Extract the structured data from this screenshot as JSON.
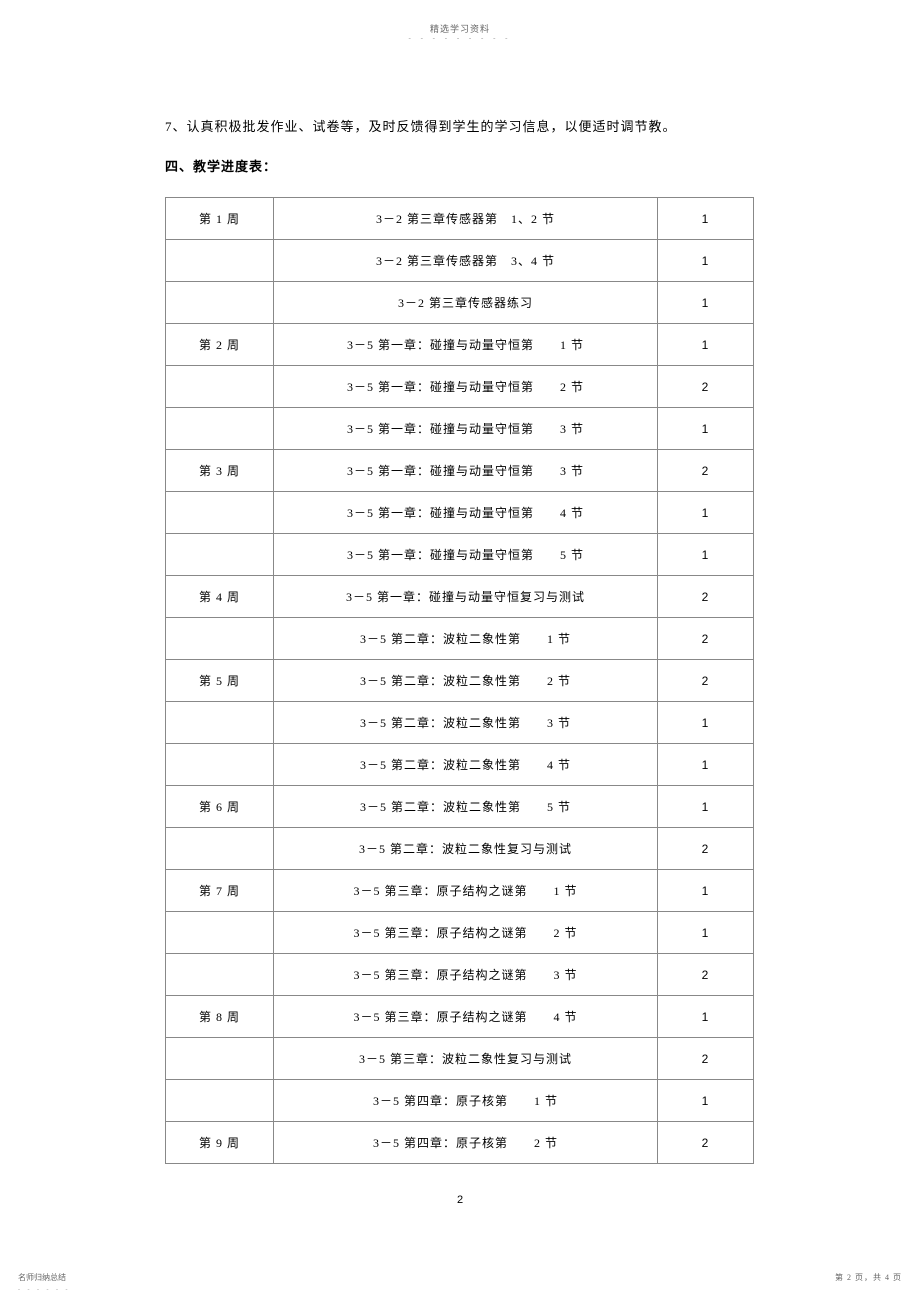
{
  "header": {
    "title": "精选学习资料",
    "dots": "- - - - - - - - -"
  },
  "body": {
    "line1": "7、认真积极批发作业、试卷等，及时反馈得到学生的学习信息，以便适时调节教。",
    "line2": "四、教学进度表："
  },
  "table": {
    "rows": [
      {
        "week": "第 1 周",
        "content": "3－2 第三章传感器第　1、2 节",
        "hours": "1"
      },
      {
        "week": "",
        "content": "3－2 第三章传感器第　3、4 节",
        "hours": "1"
      },
      {
        "week": "",
        "content": "3－2 第三章传感器练习",
        "hours": "1"
      },
      {
        "week": "第 2 周",
        "content": "3－5 第一章：碰撞与动量守恒第　　1 节",
        "hours": "1"
      },
      {
        "week": "",
        "content": "3－5 第一章：碰撞与动量守恒第　　2 节",
        "hours": "2"
      },
      {
        "week": "",
        "content": "3－5 第一章：碰撞与动量守恒第　　3 节",
        "hours": "1"
      },
      {
        "week": "第 3 周",
        "content": "3－5 第一章：碰撞与动量守恒第　　3 节",
        "hours": "2"
      },
      {
        "week": "",
        "content": "3－5 第一章：碰撞与动量守恒第　　4 节",
        "hours": "1"
      },
      {
        "week": "",
        "content": "3－5 第一章：碰撞与动量守恒第　　5 节",
        "hours": "1"
      },
      {
        "week": "第 4 周",
        "content": "3－5 第一章：碰撞与动量守恒复习与测试",
        "hours": "2"
      },
      {
        "week": "",
        "content": "3－5 第二章：波粒二象性第　　1 节",
        "hours": "2"
      },
      {
        "week": "第 5 周",
        "content": "3－5 第二章：波粒二象性第　　2 节",
        "hours": "2"
      },
      {
        "week": "",
        "content": "3－5 第二章：波粒二象性第　　3 节",
        "hours": "1"
      },
      {
        "week": "",
        "content": "3－5 第二章：波粒二象性第　　4 节",
        "hours": "1"
      },
      {
        "week": "第 6 周",
        "content": "3－5 第二章：波粒二象性第　　5 节",
        "hours": "1"
      },
      {
        "week": "",
        "content": "3－5 第二章：波粒二象性复习与测试",
        "hours": "2"
      },
      {
        "week": "第 7 周",
        "content": "3－5 第三章：原子结构之谜第　　1 节",
        "hours": "1"
      },
      {
        "week": "",
        "content": "3－5 第三章：原子结构之谜第　　2 节",
        "hours": "1"
      },
      {
        "week": "",
        "content": "3－5 第三章：原子结构之谜第　　3 节",
        "hours": "2"
      },
      {
        "week": "第 8 周",
        "content": "3－5 第三章：原子结构之谜第　　4 节",
        "hours": "1"
      },
      {
        "week": "",
        "content": "3－5 第三章：波粒二象性复习与测试",
        "hours": "2"
      },
      {
        "week": "",
        "content": "3－5 第四章：原子核第　　1 节",
        "hours": "1"
      },
      {
        "week": "第 9 周",
        "content": "3－5 第四章：原子核第　　2 节",
        "hours": "2"
      }
    ]
  },
  "page_number": "2",
  "footer": {
    "left": "名师归纳总结",
    "left_dots": "- - - - - -",
    "right": "第 2 页，共 4 页"
  }
}
